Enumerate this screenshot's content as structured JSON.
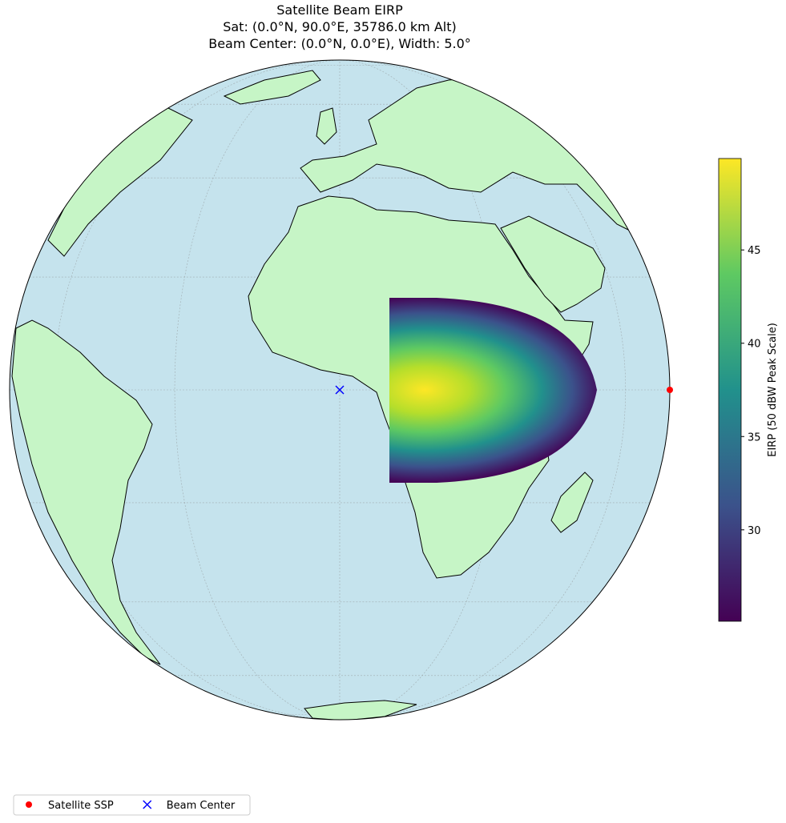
{
  "chart_data": {
    "type": "map",
    "title": "Satellite Beam EIRP",
    "subtitle": [
      "Sat: (0.0°N, 90.0°E, 35786.0 km Alt)",
      "Beam Center: (0.0°N, 0.0°E), Width: 5.0°"
    ],
    "points": [
      {
        "name": "Satellite SSP",
        "lat": 0,
        "lon": 90,
        "color": "red",
        "symbol": "circle"
      },
      {
        "name": "Beam Center",
        "lat": 0,
        "lon": 0,
        "color": "blue",
        "symbol": "x"
      }
    ],
    "colorbar": {
      "label": "EIRP (50 dBW Peak Scale)",
      "colormap": "viridis",
      "lim": [
        25.1,
        49.9
      ],
      "ticks": [
        30,
        35,
        40,
        45
      ]
    },
    "legend": "lower left"
  }
}
